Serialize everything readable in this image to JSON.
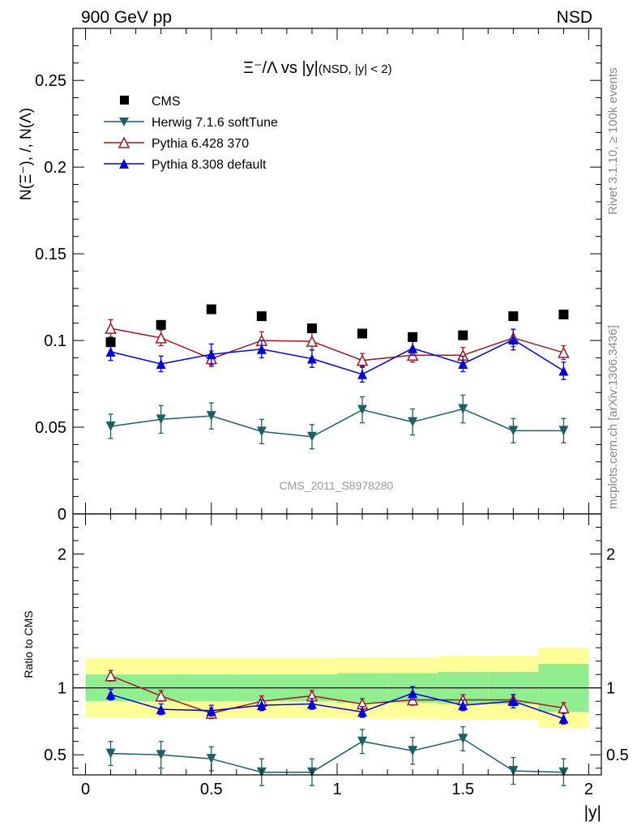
{
  "header": {
    "energy_label": "900 GeV pp",
    "process_label": "NSD"
  },
  "side_labels": {
    "rivet": "Rivet 3.1.10, ≥ 100k events",
    "source": "mcplots.cern.ch [arXiv:1306.3436]"
  },
  "watermark": "CMS_2011_S8978280",
  "colors": {
    "cms": "#000000",
    "herwig": "#1f5f66",
    "pythia6": "#9b1b24",
    "pythia8": "#0000dd",
    "band_inner": "#90ee90",
    "band_outer": "#ffff99"
  },
  "chart_data": [
    {
      "type": "scatter",
      "title": "Ξ⁻/Λ vs |y|",
      "title_suffix": "(NSD, |y| < 2)",
      "ylabel": "N(Ξ⁻), /, N(Λ)",
      "xlabel": "",
      "xlim": [
        -0.05,
        2.05
      ],
      "ylim": [
        0,
        0.28
      ],
      "yticks": [
        0,
        0.05,
        0.1,
        0.15,
        0.2,
        0.25
      ],
      "ytick_labels": [
        "0",
        "0.05",
        "0.1",
        "0.15",
        "0.2",
        "0.25"
      ],
      "x": [
        0.1,
        0.3,
        0.5,
        0.7,
        0.9,
        1.1,
        1.3,
        1.5,
        1.7,
        1.9
      ],
      "series": [
        {
          "key": "cms",
          "name": "CMS",
          "marker": "square",
          "values": [
            0.099,
            0.109,
            0.118,
            0.114,
            0.107,
            0.104,
            0.102,
            0.103,
            0.114,
            0.115
          ]
        },
        {
          "key": "herwig",
          "name": "Herwig 7.1.6 softTune",
          "marker": "triangle-down",
          "values": [
            0.0505,
            0.0545,
            0.0565,
            0.0475,
            0.0445,
            0.06,
            0.053,
            0.0605,
            0.048,
            0.048
          ],
          "errors": [
            0.007,
            0.008,
            0.0075,
            0.007,
            0.007,
            0.0075,
            0.0075,
            0.008,
            0.007,
            0.007
          ]
        },
        {
          "key": "pythia6",
          "name": "Pythia 6.428 370",
          "marker": "triangle-open",
          "values": [
            0.107,
            0.1015,
            0.0895,
            0.1,
            0.0995,
            0.0885,
            0.0915,
            0.0915,
            0.1015,
            0.093
          ],
          "errors": [
            0.005,
            0.0045,
            0.0045,
            0.005,
            0.005,
            0.004,
            0.004,
            0.0045,
            0.005,
            0.004
          ]
        },
        {
          "key": "pythia8",
          "name": "Pythia 8.308 default",
          "marker": "triangle-up",
          "values": [
            0.0935,
            0.0865,
            0.092,
            0.095,
            0.0895,
            0.0805,
            0.0955,
            0.0865,
            0.1005,
            0.0825
          ],
          "errors": [
            0.005,
            0.0045,
            0.006,
            0.005,
            0.005,
            0.0045,
            0.004,
            0.0045,
            0.006,
            0.005
          ]
        }
      ]
    },
    {
      "type": "scatter",
      "title": "",
      "ylabel": "Ratio to CMS",
      "xlabel": "|y|",
      "xlim": [
        -0.05,
        2.05
      ],
      "ylim": [
        0.35,
        2.3
      ],
      "yticks": [
        0.5,
        1,
        2
      ],
      "ytick_labels": [
        "0.5",
        "1",
        "2"
      ],
      "xticks": [
        0,
        0.5,
        1,
        1.5,
        2
      ],
      "xtick_labels": [
        "0",
        "0.5",
        "1",
        "1.5",
        "2"
      ],
      "x": [
        0.1,
        0.3,
        0.5,
        0.7,
        0.9,
        1.1,
        1.3,
        1.5,
        1.7,
        1.9
      ],
      "bin_edges": [
        0,
        0.2,
        0.4,
        0.6,
        0.8,
        1.0,
        1.2,
        1.4,
        1.6,
        1.8,
        2.0
      ],
      "band_inner": [
        [
          0.9,
          1.1
        ],
        [
          0.9,
          1.1
        ],
        [
          0.9,
          1.1
        ],
        [
          0.9,
          1.1
        ],
        [
          0.9,
          1.1
        ],
        [
          0.89,
          1.11
        ],
        [
          0.89,
          1.11
        ],
        [
          0.88,
          1.12
        ],
        [
          0.88,
          1.12
        ],
        [
          0.82,
          1.18
        ]
      ],
      "band_outer": [
        [
          0.78,
          1.22
        ],
        [
          0.78,
          1.22
        ],
        [
          0.78,
          1.22
        ],
        [
          0.78,
          1.22
        ],
        [
          0.78,
          1.22
        ],
        [
          0.77,
          1.23
        ],
        [
          0.77,
          1.23
        ],
        [
          0.76,
          1.24
        ],
        [
          0.76,
          1.24
        ],
        [
          0.7,
          1.3
        ]
      ],
      "series": [
        {
          "key": "herwig",
          "name": "Herwig 7.1.6 softTune",
          "marker": "triangle-down",
          "values": [
            0.51,
            0.5,
            0.47,
            0.37,
            0.37,
            0.6,
            0.53,
            0.62,
            0.38,
            0.37
          ],
          "errors": [
            0.09,
            0.1,
            0.09,
            0.1,
            0.1,
            0.09,
            0.1,
            0.09,
            0.1,
            0.1
          ]
        },
        {
          "key": "pythia6",
          "name": "Pythia 6.428 370",
          "marker": "triangle-open",
          "values": [
            1.09,
            0.94,
            0.81,
            0.9,
            0.94,
            0.88,
            0.91,
            0.91,
            0.91,
            0.85
          ],
          "errors": [
            0.04,
            0.04,
            0.04,
            0.04,
            0.04,
            0.04,
            0.04,
            0.04,
            0.04,
            0.04
          ]
        },
        {
          "key": "pythia8",
          "name": "Pythia 8.308 default",
          "marker": "triangle-up",
          "values": [
            0.95,
            0.84,
            0.83,
            0.87,
            0.88,
            0.82,
            0.96,
            0.87,
            0.9,
            0.77
          ],
          "errors": [
            0.04,
            0.04,
            0.04,
            0.04,
            0.04,
            0.04,
            0.05,
            0.04,
            0.05,
            0.04
          ]
        }
      ]
    }
  ]
}
